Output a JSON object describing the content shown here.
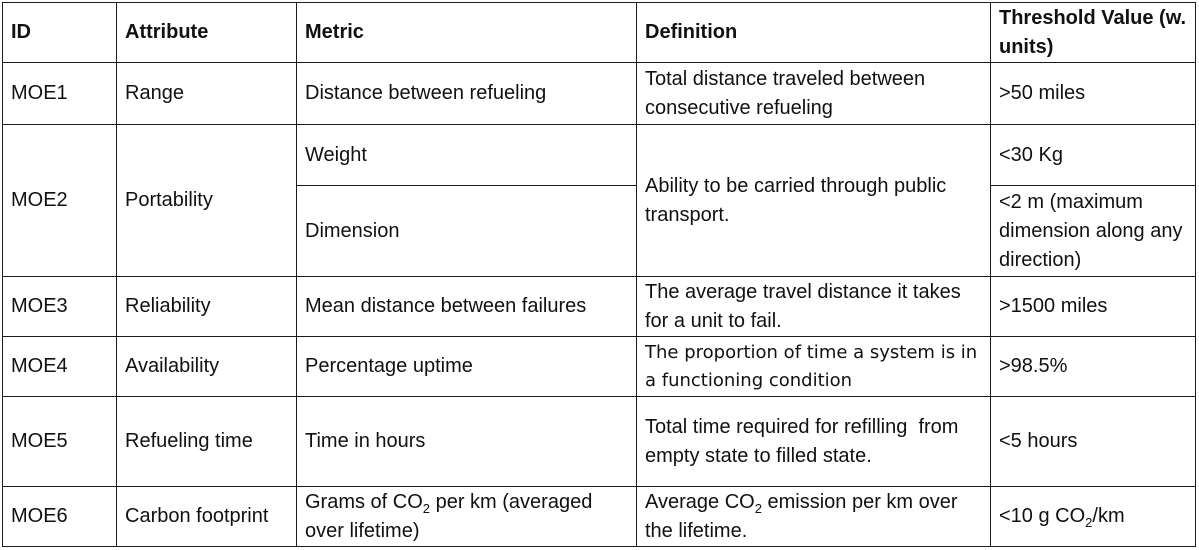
{
  "headers": [
    "ID",
    "Attribute",
    "Metric",
    "Definition",
    "Threshold Value (w. units)"
  ],
  "rows": {
    "moe1": {
      "id": "MOE1",
      "attribute": "Range",
      "metric": "Distance between refueling",
      "definition": "Total distance traveled between consecutive refueling",
      "threshold": ">50 miles"
    },
    "moe2": {
      "id": "MOE2",
      "attribute": "Portability",
      "metric_a": "Weight",
      "threshold_a": "<30 Kg",
      "metric_b": "Dimension",
      "threshold_b": "<2 m (maximum dimension along any direction)",
      "definition": "Ability to be carried through public transport."
    },
    "moe3": {
      "id": "MOE3",
      "attribute": "Reliability",
      "metric": "Mean distance between failures",
      "definition": "The average travel distance it takes for a unit to fail.",
      "threshold": ">1500 miles"
    },
    "moe4": {
      "id": "MOE4",
      "attribute": "Availability",
      "metric": "Percentage uptime",
      "definition": "The proportion of time a system is in a functioning condition",
      "threshold": ">98.5%"
    },
    "moe5": {
      "id": "MOE5",
      "attribute": "Refueling time",
      "metric": "Time in hours",
      "definition": "Total time required for refilling  from empty state to filled state.",
      "threshold": "<5 hours"
    },
    "moe6": {
      "id": "MOE6",
      "attribute": "Carbon footprint",
      "metric_pre": "Grams of CO",
      "metric_sub": "2",
      "metric_post": " per km (averaged over lifetime)",
      "definition_pre": "Average CO",
      "definition_sub": "2",
      "definition_post": " emission per km over the lifetime.",
      "threshold_pre": "<10 g CO",
      "threshold_sub": "2",
      "threshold_post": "/km"
    }
  }
}
